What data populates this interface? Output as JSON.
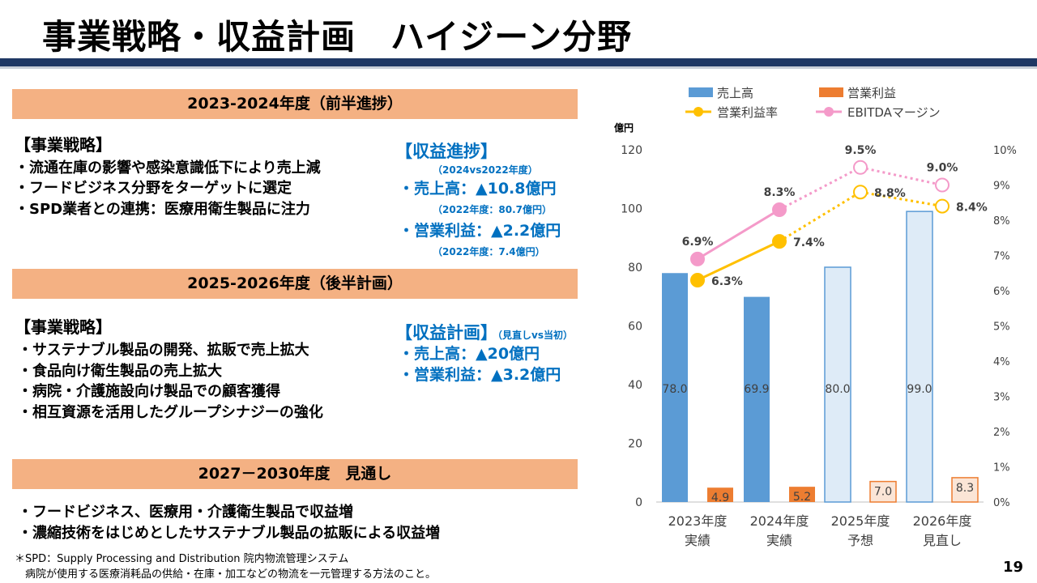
{
  "title": "事業戦略・収益計画　ハイジーン分野",
  "section1": {
    "header": "2023-2024年度（前半進捗）",
    "strategy_heading": "【事業戦略】",
    "bullets": [
      "・流通在庫の影響や感染意識低下により売上減",
      "・フードビジネス分野をターゲットに選定",
      "・SPD業者との連携：医療用衛生製品に注力"
    ],
    "progress_heading": "【収益進捗】",
    "progress_note": "（2024vs2022年度）",
    "sales_line": "・売上高：▲10.8億円",
    "sales_note": "（2022年度：80.7億円）",
    "profit_line": "・営業利益：▲2.2億円",
    "profit_note": "（2022年度：7.4億円）"
  },
  "section2": {
    "header": "2025-2026年度（後半計画）",
    "strategy_heading": "【事業戦略】",
    "bullets": [
      "・サステナブル製品の開発、拡販で売上拡大",
      "・食品向け衛生製品の売上拡大",
      "・病院・介護施設向け製品での顧客獲得",
      "・相互資源を活用したグループシナジーの強化"
    ],
    "plan_heading": "【収益計画】",
    "plan_note": "（見直しvs当初）",
    "sales_line": "・売上高：▲20億円",
    "profit_line": "・営業利益：▲3.2億円"
  },
  "section3": {
    "header": "2027－2030年度　見通し",
    "bullets": [
      "・フードビジネス、医療用・介護衛生製品で収益増",
      "・濃縮技術をはじめとしたサステナブル製品の拡販による収益増"
    ]
  },
  "footnote": [
    "＊SPD：Supply Processing and Distribution 院内物流管理システム",
    "　病院が使用する医療消耗品の供給・在庫・加工などの物流を一元管理する方法のこと。"
  ],
  "page_number": "19",
  "colors": {
    "title_rule": "#1f3864",
    "section_header": "#f4b183",
    "accent_blue": "#0070c0",
    "sales": "#5b9bd5",
    "sales_forecast": "#deebf7",
    "profit": "#ed7d31",
    "profit_forecast": "#fbe5d6",
    "margin_line": "#ffc000",
    "ebitda_line": "#f49ac9"
  },
  "chart_data": {
    "type": "bar",
    "categories": [
      [
        "2023年度",
        "実績"
      ],
      [
        "2024年度",
        "実績"
      ],
      [
        "2025年度",
        "予想"
      ],
      [
        "2026年度",
        "見直し"
      ]
    ],
    "y_unit": "億円",
    "ylim": [
      0,
      120
    ],
    "yticks": [
      "0",
      "20",
      "40",
      "60",
      "80",
      "100",
      "120"
    ],
    "y2lim": [
      0,
      10
    ],
    "y2ticks": [
      "0%",
      "1%",
      "2%",
      "3%",
      "4%",
      "5%",
      "6%",
      "7%",
      "8%",
      "9%",
      "10%"
    ],
    "forecast_from_index": 2,
    "series": [
      {
        "name": "売上高",
        "kind": "bar",
        "axis": "left",
        "values": [
          78.0,
          69.9,
          80.0,
          99.0
        ],
        "labels": [
          "78.0",
          "69.9",
          "80.0",
          "99.0"
        ]
      },
      {
        "name": "営業利益",
        "kind": "bar",
        "axis": "left",
        "values": [
          4.9,
          5.2,
          7.0,
          8.3
        ],
        "labels": [
          "4.9",
          "5.2",
          "7.0",
          "8.3"
        ]
      },
      {
        "name": "営業利益率",
        "kind": "line",
        "axis": "right",
        "values": [
          6.3,
          7.4,
          8.8,
          8.4
        ],
        "labels": [
          "6.3%",
          "7.4%",
          "8.8%",
          "8.4%"
        ]
      },
      {
        "name": "EBITDAマージン",
        "kind": "line",
        "axis": "right",
        "values": [
          6.9,
          8.3,
          9.5,
          9.0
        ],
        "labels": [
          "6.9%",
          "8.3%",
          "9.5%",
          "9.0%"
        ]
      }
    ],
    "legend_position": "top",
    "grid": false
  }
}
